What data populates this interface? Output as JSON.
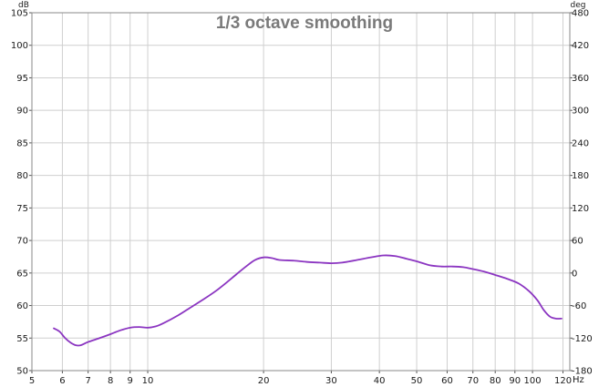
{
  "chart_data": {
    "type": "line",
    "title": "1/3 octave smoothing",
    "xlabel": "Hz",
    "ylabel": "dB",
    "y2label": "deg",
    "x_scale": "log",
    "xlim": [
      5,
      125
    ],
    "ylim": [
      50,
      105
    ],
    "y2lim": [
      -180,
      480
    ],
    "grid": true,
    "x_ticks": [
      {
        "value": 5,
        "label": "5"
      },
      {
        "value": 6,
        "label": "6"
      },
      {
        "value": 7,
        "label": "7"
      },
      {
        "value": 8,
        "label": "8"
      },
      {
        "value": 9,
        "label": "9"
      },
      {
        "value": 10,
        "label": "10"
      },
      {
        "value": 20,
        "label": "20"
      },
      {
        "value": 30,
        "label": "30"
      },
      {
        "value": 40,
        "label": "40"
      },
      {
        "value": 50,
        "label": "50"
      },
      {
        "value": 60,
        "label": "60"
      },
      {
        "value": 70,
        "label": "70"
      },
      {
        "value": 80,
        "label": "80"
      },
      {
        "value": 90,
        "label": "90"
      },
      {
        "value": 100,
        "label": "100"
      },
      {
        "value": 120,
        "label": "120"
      }
    ],
    "y_ticks": [
      50,
      55,
      60,
      65,
      70,
      75,
      80,
      85,
      90,
      95,
      100,
      105
    ],
    "y2_ticks": [
      -180,
      -120,
      -60,
      0,
      60,
      120,
      180,
      240,
      300,
      360,
      420,
      480
    ],
    "series": [
      {
        "color": "#8b35c1",
        "points": [
          [
            5.7,
            56.5
          ],
          [
            5.9,
            56.0
          ],
          [
            6.1,
            55.0
          ],
          [
            6.3,
            54.3
          ],
          [
            6.5,
            53.9
          ],
          [
            6.7,
            53.9
          ],
          [
            7.0,
            54.4
          ],
          [
            7.5,
            55.0
          ],
          [
            8.0,
            55.6
          ],
          [
            8.5,
            56.2
          ],
          [
            9.0,
            56.6
          ],
          [
            9.5,
            56.7
          ],
          [
            10.0,
            56.6
          ],
          [
            10.5,
            56.8
          ],
          [
            11.0,
            57.3
          ],
          [
            12.0,
            58.5
          ],
          [
            13.0,
            59.8
          ],
          [
            14.0,
            61.0
          ],
          [
            15.0,
            62.2
          ],
          [
            16.0,
            63.5
          ],
          [
            17.0,
            64.8
          ],
          [
            18.0,
            66.0
          ],
          [
            19.0,
            67.0
          ],
          [
            20.0,
            67.4
          ],
          [
            21.0,
            67.3
          ],
          [
            22.0,
            67.0
          ],
          [
            24.0,
            66.9
          ],
          [
            26.0,
            66.7
          ],
          [
            28.0,
            66.6
          ],
          [
            30.0,
            66.5
          ],
          [
            32.0,
            66.6
          ],
          [
            35.0,
            67.0
          ],
          [
            38.0,
            67.4
          ],
          [
            41.0,
            67.7
          ],
          [
            44.0,
            67.6
          ],
          [
            47.0,
            67.2
          ],
          [
            50.0,
            66.8
          ],
          [
            54.0,
            66.2
          ],
          [
            58.0,
            66.0
          ],
          [
            62.0,
            66.0
          ],
          [
            66.0,
            65.9
          ],
          [
            70.0,
            65.6
          ],
          [
            75.0,
            65.2
          ],
          [
            80.0,
            64.7
          ],
          [
            86.0,
            64.1
          ],
          [
            92.0,
            63.4
          ],
          [
            98.0,
            62.2
          ],
          [
            103.0,
            60.8
          ],
          [
            107.0,
            59.3
          ],
          [
            111.0,
            58.3
          ],
          [
            115.0,
            58.0
          ],
          [
            119.0,
            58.0
          ]
        ]
      }
    ]
  }
}
